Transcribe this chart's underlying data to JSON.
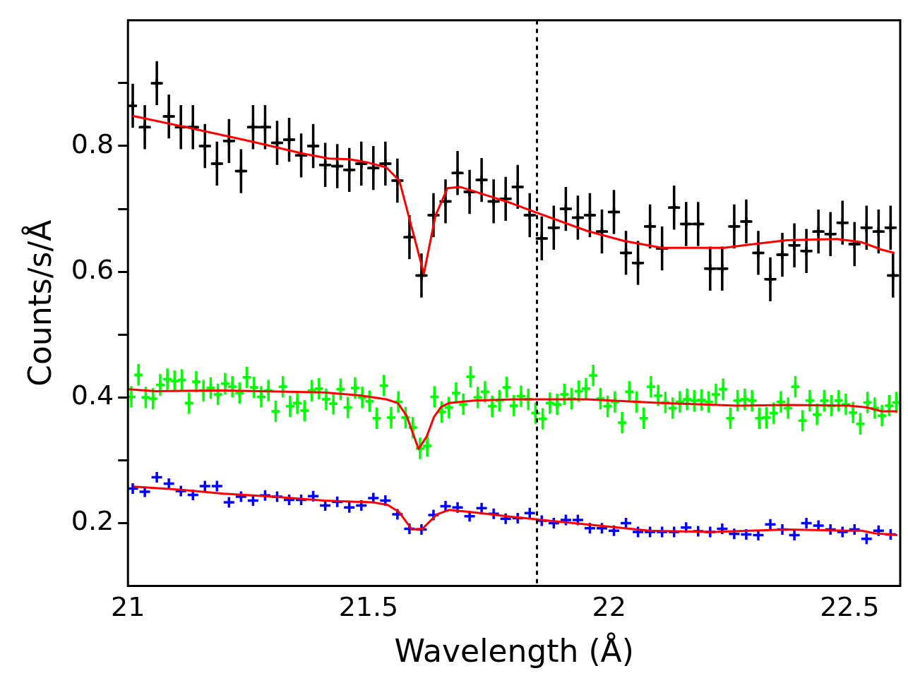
{
  "chart_data": {
    "type": "scatter",
    "xlabel": "Wavelength (Å)",
    "ylabel": "Counts/s/Å",
    "xlim": [
      21,
      22.605
    ],
    "ylim": [
      0.1,
      1.0
    ],
    "xticks": [
      21,
      21.5,
      22,
      22.5
    ],
    "yticks": [
      0.2,
      {
        "value": 0.3,
        "label": null
      },
      0.4,
      {
        "value": 0.5,
        "label": null
      },
      0.6,
      {
        "value": 0.7,
        "label": null
      },
      0.8,
      {
        "value": 0.9,
        "label": null
      }
    ],
    "grid": false,
    "legend": false,
    "marker": "cross",
    "ref_lines": [
      {
        "axis": "x",
        "value": 21.85,
        "color": "#000000",
        "line_style": "dotted"
      }
    ],
    "series": [
      {
        "color": "#000000",
        "x": [
          21.01,
          21.035,
          21.06,
          21.085,
          21.11,
          21.135,
          21.16,
          21.185,
          21.21,
          21.235,
          21.26,
          21.285,
          21.31,
          21.335,
          21.36,
          21.385,
          21.41,
          21.435,
          21.46,
          21.485,
          21.51,
          21.535,
          21.56,
          21.585,
          21.61,
          21.635,
          21.66,
          21.685,
          21.71,
          21.735,
          21.76,
          21.785,
          21.81,
          21.835,
          21.86,
          21.885,
          21.91,
          21.935,
          21.96,
          21.985,
          22.01,
          22.035,
          22.06,
          22.085,
          22.11,
          22.135,
          22.16,
          22.185,
          22.21,
          22.235,
          22.26,
          22.285,
          22.31,
          22.335,
          22.36,
          22.385,
          22.41,
          22.435,
          22.46,
          22.485,
          22.51,
          22.535,
          22.56,
          22.585,
          22.59
        ],
        "values": [
          0.864,
          0.83,
          0.9,
          0.847,
          0.83,
          0.83,
          0.8,
          0.772,
          0.808,
          0.76,
          0.83,
          0.83,
          0.805,
          0.81,
          0.785,
          0.8,
          0.77,
          0.768,
          0.762,
          0.772,
          0.765,
          0.772,
          0.745,
          0.655,
          0.594,
          0.69,
          0.712,
          0.757,
          0.727,
          0.746,
          0.712,
          0.716,
          0.735,
          0.69,
          0.653,
          0.67,
          0.7,
          0.686,
          0.69,
          0.664,
          0.695,
          0.63,
          0.614,
          0.672,
          0.637,
          0.702,
          0.676,
          0.676,
          0.605,
          0.605,
          0.672,
          0.68,
          0.63,
          0.588,
          0.627,
          0.642,
          0.633,
          0.664,
          0.66,
          0.678,
          0.644,
          0.67,
          0.664,
          0.67,
          0.594
        ],
        "errors": [
          0.035,
          0.035,
          0.035,
          0.035,
          0.035,
          0.035,
          0.035,
          0.035,
          0.035,
          0.035,
          0.035,
          0.035,
          0.035,
          0.035,
          0.035,
          0.035,
          0.035,
          0.035,
          0.035,
          0.035,
          0.035,
          0.035,
          0.035,
          0.035,
          0.035,
          0.035,
          0.035,
          0.035,
          0.035,
          0.035,
          0.035,
          0.035,
          0.035,
          0.035,
          0.035,
          0.035,
          0.035,
          0.035,
          0.035,
          0.035,
          0.035,
          0.035,
          0.035,
          0.035,
          0.035,
          0.035,
          0.035,
          0.035,
          0.035,
          0.035,
          0.035,
          0.035,
          0.035,
          0.035,
          0.035,
          0.035,
          0.035,
          0.035,
          0.035,
          0.035,
          0.035,
          0.035,
          0.035,
          0.035,
          0.035
        ],
        "xerrors": [
          null,
          0.0125,
          0.0125,
          0.0125,
          0.0125,
          0.0125,
          0.0125,
          0.0125,
          0.0125,
          0.0125,
          0.0125,
          0.0125,
          0.0125,
          0.0125,
          0.0125,
          0.0125,
          0.0125,
          0.0125,
          0.0125,
          0.0125,
          0.0125,
          0.0125,
          0.0125,
          0.0125,
          0.0125,
          0.0125,
          0.0125,
          0.0125,
          0.0125,
          0.0125,
          0.0125,
          0.0125,
          0.0125,
          0.0125,
          0.0125,
          0.0125,
          0.0125,
          0.0125,
          0.0125,
          0.0125,
          0.0125,
          0.0125,
          0.0125,
          0.0125,
          0.0125,
          0.0125,
          0.0125,
          0.0125,
          0.0125,
          0.0125,
          0.0125,
          0.0125,
          0.0125,
          0.0125,
          0.0125,
          0.0125,
          0.0125,
          0.0125,
          0.0125,
          0.0125,
          0.0125,
          0.0125,
          0.0125,
          0.0125,
          0.0125
        ]
      },
      {
        "color": "#00ff00",
        "x": [
          21.007,
          21.022,
          21.037,
          21.052,
          21.067,
          21.082,
          21.097,
          21.112,
          21.127,
          21.142,
          21.157,
          21.172,
          21.187,
          21.202,
          21.217,
          21.232,
          21.247,
          21.262,
          21.277,
          21.292,
          21.307,
          21.322,
          21.337,
          21.352,
          21.367,
          21.382,
          21.397,
          21.412,
          21.427,
          21.442,
          21.457,
          21.472,
          21.487,
          21.502,
          21.517,
          21.532,
          21.547,
          21.562,
          21.577,
          21.592,
          21.607,
          21.622,
          21.637,
          21.652,
          21.667,
          21.682,
          21.697,
          21.712,
          21.727,
          21.742,
          21.757,
          21.772,
          21.787,
          21.802,
          21.817,
          21.832,
          21.847,
          21.862,
          21.877,
          21.892,
          21.907,
          21.922,
          21.937,
          21.952,
          21.967,
          21.982,
          21.997,
          22.012,
          22.027,
          22.042,
          22.057,
          22.072,
          22.087,
          22.102,
          22.117,
          22.132,
          22.147,
          22.162,
          22.177,
          22.192,
          22.207,
          22.222,
          22.237,
          22.252,
          22.267,
          22.282,
          22.297,
          22.312,
          22.327,
          22.342,
          22.357,
          22.372,
          22.387,
          22.402,
          22.417,
          22.432,
          22.447,
          22.462,
          22.477,
          22.492,
          22.507,
          22.522,
          22.537,
          22.552,
          22.567,
          22.582,
          22.597
        ],
        "values": [
          0.401,
          0.436,
          0.4,
          0.398,
          0.42,
          0.429,
          0.426,
          0.428,
          0.391,
          0.425,
          0.411,
          0.415,
          0.405,
          0.422,
          0.417,
          0.407,
          0.432,
          0.416,
          0.401,
          0.411,
          0.378,
          0.417,
          0.386,
          0.391,
          0.379,
          0.411,
          0.414,
          0.397,
          0.39,
          0.413,
          0.384,
          0.415,
          0.4,
          0.394,
          0.367,
          0.419,
          0.368,
          0.393,
          0.368,
          0.352,
          0.319,
          0.323,
          0.401,
          0.377,
          0.384,
          0.407,
          0.389,
          0.433,
          0.4,
          0.409,
          0.386,
          0.395,
          0.416,
          0.387,
          0.402,
          0.397,
          0.375,
          0.366,
          0.391,
          0.389,
          0.405,
          0.398,
          0.41,
          0.414,
          0.435,
          0.398,
          0.386,
          0.393,
          0.36,
          0.409,
          0.393,
          0.367,
          0.417,
          0.403,
          0.392,
          0.383,
          0.393,
          0.397,
          0.395,
          0.396,
          0.393,
          0.405,
          0.413,
          0.367,
          0.395,
          0.397,
          0.395,
          0.367,
          0.368,
          0.375,
          0.393,
          0.383,
          0.417,
          0.363,
          0.395,
          0.373,
          0.395,
          0.387,
          0.395,
          0.389,
          0.376,
          0.358,
          0.392,
          0.383,
          0.371,
          0.387,
          0.392
        ],
        "errors": [
          0.017,
          0.017,
          0.017,
          0.017,
          0.017,
          0.017,
          0.017,
          0.017,
          0.017,
          0.017,
          0.017,
          0.017,
          0.017,
          0.017,
          0.017,
          0.017,
          0.017,
          0.017,
          0.017,
          0.017,
          0.017,
          0.017,
          0.017,
          0.017,
          0.017,
          0.017,
          0.017,
          0.017,
          0.017,
          0.017,
          0.017,
          0.017,
          0.017,
          0.017,
          0.017,
          0.017,
          0.017,
          0.017,
          0.017,
          0.017,
          0.017,
          0.017,
          0.017,
          0.017,
          0.017,
          0.017,
          0.017,
          0.017,
          0.017,
          0.017,
          0.017,
          0.017,
          0.017,
          0.017,
          0.017,
          0.017,
          0.017,
          0.017,
          0.017,
          0.017,
          0.017,
          0.017,
          0.017,
          0.017,
          0.017,
          0.017,
          0.017,
          0.017,
          0.017,
          0.017,
          0.017,
          0.017,
          0.017,
          0.017,
          0.017,
          0.017,
          0.017,
          0.017,
          0.017,
          0.017,
          0.017,
          0.017,
          0.017,
          0.017,
          0.017,
          0.017,
          0.017,
          0.017,
          0.017,
          0.017,
          0.017,
          0.017,
          0.017,
          0.017,
          0.017,
          0.017,
          0.017,
          0.017,
          0.017,
          0.017,
          0.017,
          0.017,
          0.017,
          0.017,
          0.017,
          0.017,
          0.017
        ],
        "xerrors": [
          null,
          0.006,
          0.006,
          0.006,
          0.006,
          0.006,
          0.006,
          0.006,
          0.006,
          0.006,
          0.006,
          0.006,
          0.006,
          0.006,
          0.006,
          0.006,
          0.006,
          0.006,
          0.006,
          0.006,
          0.006,
          0.006,
          0.006,
          0.006,
          0.006,
          0.006,
          0.006,
          0.006,
          0.006,
          0.006,
          0.006,
          0.006,
          0.006,
          0.006,
          0.006,
          0.006,
          0.006,
          0.006,
          0.006,
          0.006,
          0.006,
          0.006,
          0.006,
          0.006,
          0.006,
          0.006,
          0.006,
          0.006,
          0.006,
          0.006,
          0.006,
          0.006,
          0.006,
          0.006,
          0.006,
          0.006,
          0.006,
          0.006,
          0.006,
          0.006,
          0.006,
          0.006,
          0.006,
          0.006,
          0.006,
          0.006,
          0.006,
          0.006,
          0.006,
          0.006,
          0.006,
          0.006,
          0.006,
          0.006,
          0.006,
          0.006,
          0.006,
          0.006,
          0.006,
          0.006,
          0.006,
          0.006,
          0.006,
          0.006,
          0.006,
          0.006,
          0.006,
          0.006,
          0.006,
          0.006,
          0.006,
          0.006,
          0.006,
          0.006,
          0.006,
          0.006,
          0.006,
          0.006,
          0.006,
          0.006,
          0.006,
          0.006,
          0.006,
          0.006,
          0.006,
          0.006,
          0.006
        ]
      },
      {
        "color": "#0000ff",
        "x": [
          21.01,
          21.035,
          21.06,
          21.085,
          21.11,
          21.135,
          21.16,
          21.185,
          21.21,
          21.235,
          21.26,
          21.285,
          21.31,
          21.335,
          21.36,
          21.385,
          21.41,
          21.435,
          21.46,
          21.485,
          21.51,
          21.535,
          21.56,
          21.585,
          21.61,
          21.635,
          21.66,
          21.685,
          21.71,
          21.735,
          21.76,
          21.785,
          21.81,
          21.835,
          21.86,
          21.885,
          21.91,
          21.935,
          21.96,
          21.985,
          22.01,
          22.035,
          22.06,
          22.085,
          22.11,
          22.135,
          22.16,
          22.185,
          22.21,
          22.235,
          22.26,
          22.285,
          22.31,
          22.335,
          22.36,
          22.385,
          22.41,
          22.435,
          22.46,
          22.485,
          22.51,
          22.535,
          22.56,
          22.585
        ],
        "values": [
          0.255,
          0.25,
          0.273,
          0.263,
          0.251,
          0.245,
          0.259,
          0.259,
          0.233,
          0.242,
          0.236,
          0.244,
          0.242,
          0.237,
          0.237,
          0.243,
          0.228,
          0.234,
          0.225,
          0.228,
          0.24,
          0.236,
          0.214,
          0.191,
          0.19,
          0.213,
          0.227,
          0.225,
          0.211,
          0.224,
          0.215,
          0.207,
          0.208,
          0.216,
          0.204,
          0.2,
          0.205,
          0.205,
          0.192,
          0.192,
          0.188,
          0.2,
          0.186,
          0.186,
          0.186,
          0.186,
          0.193,
          0.187,
          0.186,
          0.191,
          0.183,
          0.182,
          0.181,
          0.198,
          0.19,
          0.181,
          0.2,
          0.196,
          0.19,
          0.186,
          0.19,
          0.175,
          0.188,
          0.182
        ]
      },
      {
        "type": "line",
        "marker": "none",
        "color": "#ff0000",
        "x": [
          21.01,
          21.151,
          21.258,
          21.364,
          21.418,
          21.46,
          21.497,
          21.537,
          21.564,
          21.615,
          21.639,
          21.664,
          21.69,
          21.727,
          21.797,
          21.849,
          21.954,
          22.031,
          22.109,
          22.239,
          22.291,
          22.369,
          22.473,
          22.525,
          22.567,
          22.593
        ],
        "values": [
          0.848,
          0.825,
          0.807,
          0.788,
          0.78,
          0.779,
          0.774,
          0.766,
          0.745,
          0.597,
          0.689,
          0.733,
          0.735,
          0.726,
          0.709,
          0.694,
          0.665,
          0.649,
          0.638,
          0.638,
          0.643,
          0.65,
          0.652,
          0.647,
          0.635,
          0.63
        ]
      },
      {
        "type": "line",
        "marker": "none",
        "color": "#ff0000",
        "x": [
          21.001,
          21.058,
          21.199,
          21.407,
          21.485,
          21.537,
          21.561,
          21.579,
          21.604,
          21.621,
          21.636,
          21.651,
          21.667,
          21.719,
          21.803,
          21.954,
          22.109,
          22.266,
          22.369,
          22.499,
          22.536,
          22.567,
          22.599
        ],
        "values": [
          0.413,
          0.41,
          0.411,
          0.408,
          0.403,
          0.397,
          0.391,
          0.371,
          0.318,
          0.338,
          0.369,
          0.385,
          0.391,
          0.395,
          0.397,
          0.397,
          0.391,
          0.387,
          0.388,
          0.387,
          0.384,
          0.378,
          0.378
        ]
      },
      {
        "type": "line",
        "marker": "none",
        "color": "#ff0000",
        "x": [
          21.012,
          21.096,
          21.199,
          21.303,
          21.407,
          21.51,
          21.54,
          21.563,
          21.59,
          21.612,
          21.642,
          21.667,
          21.719,
          21.797,
          21.901,
          22.004,
          22.084,
          22.213,
          22.369,
          22.499,
          22.525,
          22.551,
          22.599
        ],
        "values": [
          0.258,
          0.254,
          0.247,
          0.242,
          0.236,
          0.233,
          0.229,
          0.218,
          0.19,
          0.191,
          0.214,
          0.221,
          0.217,
          0.21,
          0.202,
          0.194,
          0.188,
          0.186,
          0.19,
          0.188,
          0.188,
          0.184,
          0.181
        ]
      }
    ]
  }
}
